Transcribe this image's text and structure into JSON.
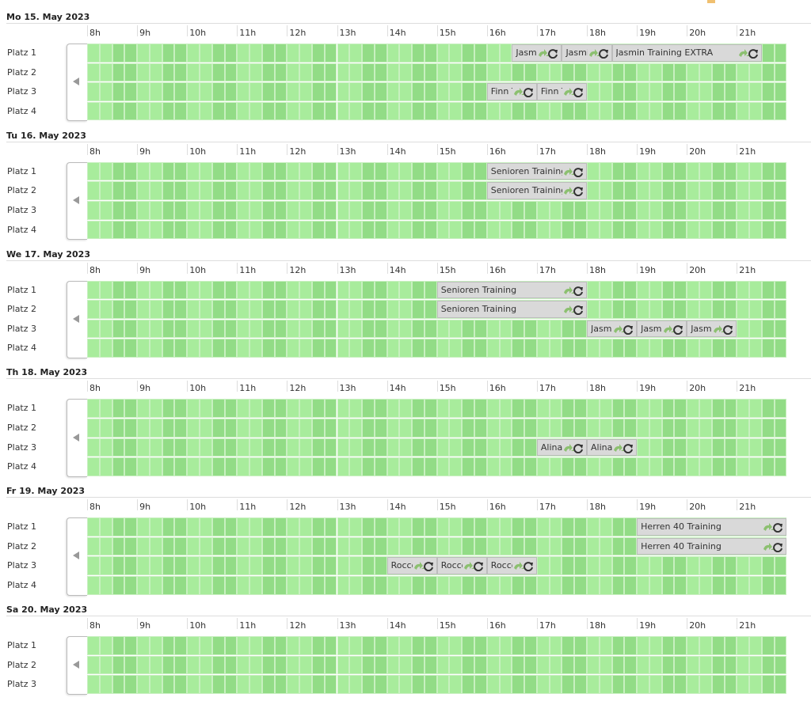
{
  "hours": [
    "8h",
    "9h",
    "10h",
    "11h",
    "12h",
    "13h",
    "14h",
    "15h",
    "16h",
    "17h",
    "18h",
    "19h",
    "20h",
    "21h"
  ],
  "grid_start": 8,
  "days": [
    {
      "label": "Mo 15. May 2023",
      "courts": [
        {
          "name": "Platz 1",
          "bookings": [
            {
              "label": "Jasmin Training",
              "from": 16.5,
              "to": 17.5
            },
            {
              "label": "Jasmin Training",
              "from": 17.5,
              "to": 18.5
            },
            {
              "label": "Jasmin Training EXTRA",
              "from": 18.5,
              "to": 21.5
            }
          ]
        },
        {
          "name": "Platz 2",
          "bookings": []
        },
        {
          "name": "Platz 3",
          "bookings": [
            {
              "label": "Finn Training",
              "from": 16,
              "to": 17
            },
            {
              "label": "Finn Training",
              "from": 17,
              "to": 18
            }
          ]
        },
        {
          "name": "Platz 4",
          "bookings": []
        }
      ]
    },
    {
      "label": "Tu 16. May 2023",
      "courts": [
        {
          "name": "Platz 1",
          "bookings": [
            {
              "label": "Senioren Training",
              "from": 16,
              "to": 18
            }
          ]
        },
        {
          "name": "Platz 2",
          "bookings": [
            {
              "label": "Senioren Training",
              "from": 16,
              "to": 18
            }
          ]
        },
        {
          "name": "Platz 3",
          "bookings": []
        },
        {
          "name": "Platz 4",
          "bookings": []
        }
      ]
    },
    {
      "label": "We 17. May 2023",
      "courts": [
        {
          "name": "Platz 1",
          "bookings": [
            {
              "label": "Senioren Training",
              "from": 15,
              "to": 18
            }
          ]
        },
        {
          "name": "Platz 2",
          "bookings": [
            {
              "label": "Senioren Training",
              "from": 15,
              "to": 18
            }
          ]
        },
        {
          "name": "Platz 3",
          "bookings": [
            {
              "label": "Jasmin Training",
              "from": 18,
              "to": 19
            },
            {
              "label": "Jasmin Training",
              "from": 19,
              "to": 20
            },
            {
              "label": "Jasmin Training",
              "from": 20,
              "to": 21
            }
          ]
        },
        {
          "name": "Platz 4",
          "bookings": []
        }
      ]
    },
    {
      "label": "Th 18. May 2023",
      "courts": [
        {
          "name": "Platz 1",
          "bookings": []
        },
        {
          "name": "Platz 2",
          "bookings": []
        },
        {
          "name": "Platz 3",
          "bookings": [
            {
              "label": "Alina Training",
              "from": 17,
              "to": 18
            },
            {
              "label": "Alina Training",
              "from": 18,
              "to": 19
            }
          ]
        },
        {
          "name": "Platz 4",
          "bookings": []
        }
      ]
    },
    {
      "label": "Fr 19. May 2023",
      "courts": [
        {
          "name": "Platz 1",
          "bookings": [
            {
              "label": "Herren 40 Training",
              "from": 19,
              "to": 22
            }
          ]
        },
        {
          "name": "Platz 2",
          "bookings": [
            {
              "label": "Herren 40 Training",
              "from": 19,
              "to": 22
            }
          ]
        },
        {
          "name": "Platz 3",
          "bookings": [
            {
              "label": "Rocco Training",
              "from": 14,
              "to": 15
            },
            {
              "label": "Rocco Training",
              "from": 15,
              "to": 16
            },
            {
              "label": "Rocco Training",
              "from": 16,
              "to": 17
            }
          ]
        },
        {
          "name": "Platz 4",
          "bookings": []
        }
      ]
    },
    {
      "label": "Sa 20. May 2023",
      "courts": [
        {
          "name": "Platz 1",
          "bookings": []
        },
        {
          "name": "Platz 2",
          "bookings": []
        },
        {
          "name": "Platz 3",
          "bookings": []
        }
      ]
    }
  ]
}
